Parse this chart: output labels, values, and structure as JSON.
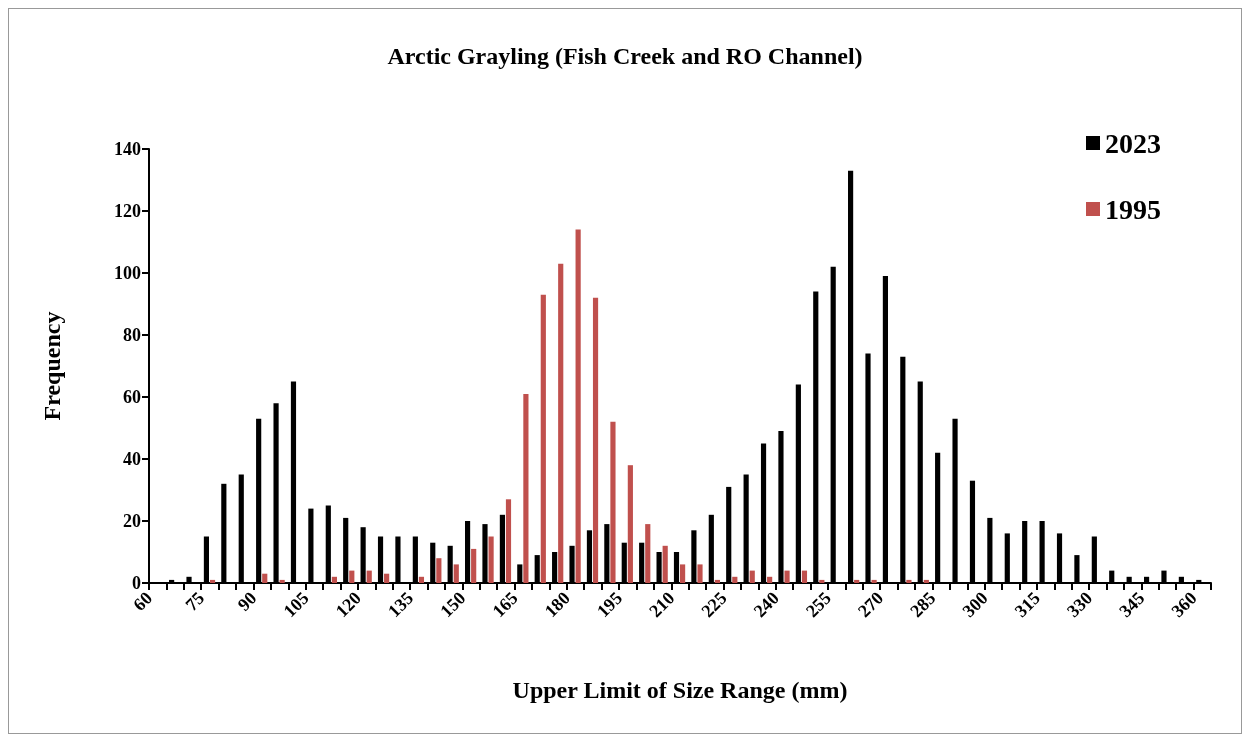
{
  "chart_data": {
    "type": "histogram",
    "title": "Arctic Grayling (Fish Creek and RO Channel)",
    "xlabel": "Upper Limit of Size Range (mm)",
    "ylabel": "Frequency",
    "bins": [
      60,
      65,
      70,
      75,
      80,
      85,
      90,
      95,
      100,
      105,
      110,
      115,
      120,
      125,
      130,
      135,
      140,
      145,
      150,
      155,
      160,
      165,
      170,
      175,
      180,
      185,
      190,
      195,
      200,
      205,
      210,
      215,
      220,
      225,
      230,
      235,
      240,
      245,
      250,
      255,
      260,
      265,
      270,
      275,
      280,
      285,
      290,
      295,
      300,
      305,
      310,
      315,
      320,
      325,
      330,
      335,
      340,
      345,
      350,
      355,
      360,
      365
    ],
    "series": [
      {
        "name": "2023",
        "color": "#000000",
        "values": [
          0,
          1,
          2,
          15,
          32,
          35,
          53,
          58,
          65,
          24,
          25,
          21,
          18,
          15,
          15,
          15,
          13,
          12,
          20,
          19,
          22,
          6,
          9,
          10,
          12,
          17,
          19,
          13,
          13,
          10,
          10,
          17,
          22,
          31,
          35,
          45,
          49,
          64,
          94,
          102,
          133,
          74,
          99,
          73,
          65,
          42,
          53,
          33,
          21,
          16,
          20,
          20,
          16,
          9,
          15,
          4,
          2,
          2,
          4,
          2,
          1
        ]
      },
      {
        "name": "1995",
        "color": "#c0504d",
        "values": [
          0,
          0,
          0,
          1,
          0,
          0,
          3,
          1,
          0,
          0,
          2,
          4,
          4,
          3,
          0,
          2,
          8,
          6,
          11,
          15,
          27,
          61,
          93,
          103,
          114,
          92,
          52,
          38,
          19,
          12,
          6,
          6,
          1,
          2,
          4,
          2,
          4,
          4,
          1,
          0,
          1,
          1,
          0,
          1,
          1,
          0,
          0,
          0,
          0,
          0,
          0,
          0,
          0,
          0,
          0,
          0,
          0,
          0,
          0,
          0,
          0
        ]
      }
    ],
    "xlim": [
      60,
      365
    ],
    "xticks": [
      60,
      75,
      90,
      105,
      120,
      135,
      150,
      165,
      180,
      195,
      210,
      225,
      240,
      255,
      270,
      285,
      300,
      315,
      330,
      345,
      360
    ],
    "ylim": [
      0,
      140
    ],
    "yticks": [
      0,
      20,
      40,
      60,
      80,
      100,
      120,
      140
    ],
    "grid": false,
    "legend": "top right"
  }
}
